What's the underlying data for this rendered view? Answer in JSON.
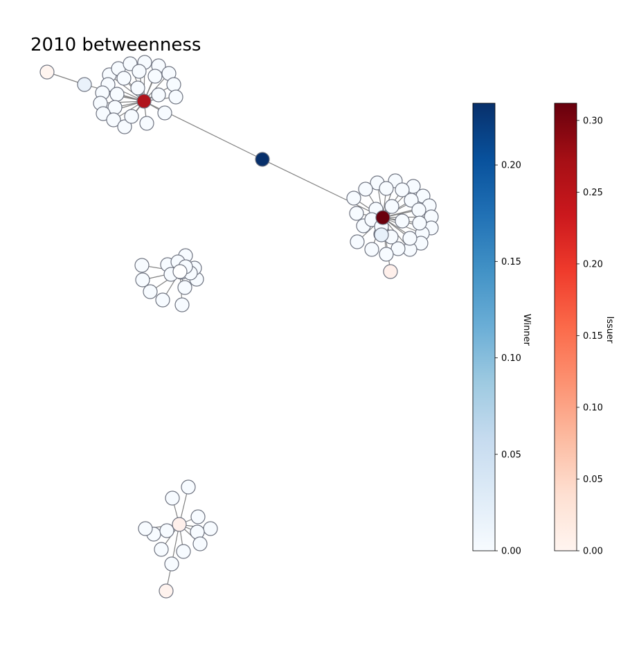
{
  "chart_data": {
    "type": "network",
    "title": "2010 betweenness",
    "colorbars": [
      {
        "name": "Winner",
        "label": "Winner",
        "colormap": "Blues",
        "range": [
          0,
          0.232
        ],
        "ticks": [
          0.0,
          0.05,
          0.1,
          0.15,
          0.2
        ],
        "tick_labels": [
          "0.00",
          "0.05",
          "0.10",
          "0.15",
          "0.20"
        ],
        "colors": [
          "#f7fbff",
          "#deebf7",
          "#c6dbef",
          "#9ecae1",
          "#6baed6",
          "#4292c6",
          "#2171b5",
          "#08519c",
          "#08306b"
        ]
      },
      {
        "name": "Issuer",
        "label": "Issuer",
        "colormap": "Reds",
        "range": [
          0,
          0.312
        ],
        "ticks": [
          0.0,
          0.05,
          0.1,
          0.15,
          0.2,
          0.25,
          0.3
        ],
        "tick_labels": [
          "0.00",
          "0.05",
          "0.10",
          "0.15",
          "0.20",
          "0.25",
          "0.30"
        ],
        "colors": [
          "#fff5f0",
          "#fee0d2",
          "#fcbba1",
          "#fc9272",
          "#fb6a4a",
          "#ef3b2c",
          "#cb181d",
          "#a50f15",
          "#67000d"
        ]
      }
    ],
    "node_stroke": "#6e7380",
    "edge_color": "#808080",
    "hubs": [
      {
        "id": "h1",
        "role": "issuer",
        "value": 0.25,
        "color": "#b0141c"
      },
      {
        "id": "h2",
        "role": "issuer",
        "value": 0.31,
        "color": "#6a000d"
      },
      {
        "id": "bridge",
        "role": "winner",
        "value": 0.232,
        "color": "#08306b"
      },
      {
        "id": "h3",
        "role": "issuer",
        "value": 0.0,
        "color": "#ffffff"
      },
      {
        "id": "h4",
        "role": "issuer",
        "value": 0.01,
        "color": "#fff0eb"
      }
    ]
  }
}
